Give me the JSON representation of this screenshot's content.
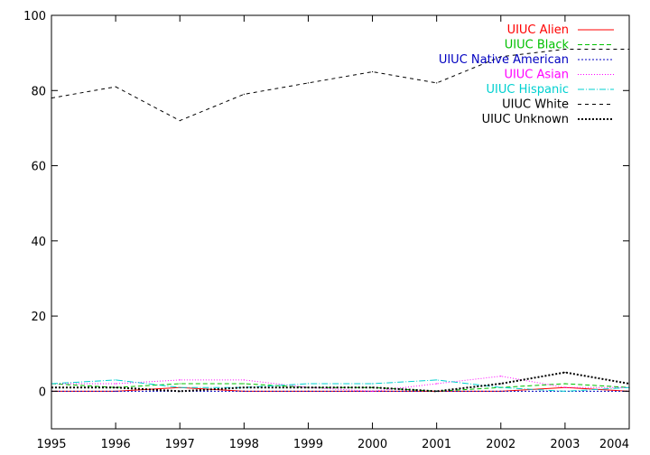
{
  "chart_data": {
    "type": "line",
    "title": "",
    "xlabel": "",
    "ylabel": "",
    "xlim": [
      1995,
      2004
    ],
    "ylim": [
      -10,
      100
    ],
    "x_ticks": [
      1995,
      1996,
      1997,
      1998,
      1999,
      2000,
      2001,
      2002,
      2003,
      2004
    ],
    "y_ticks": [
      0,
      20,
      40,
      60,
      80,
      100
    ],
    "grid": false,
    "legend_position": "top-right",
    "x": [
      1995,
      1996,
      1997,
      1998,
      1999,
      2000,
      2001,
      2002,
      2003,
      2004
    ],
    "series": [
      {
        "name": "UIUC Alien",
        "color": "#ff0000",
        "dash": "solid",
        "values": [
          0,
          0,
          1,
          0,
          0,
          0,
          0,
          0,
          1,
          0
        ]
      },
      {
        "name": "UIUC Black",
        "color": "#00c000",
        "dash": "5,3",
        "values": [
          2,
          1,
          2,
          2,
          1,
          1,
          0,
          1,
          2,
          1
        ]
      },
      {
        "name": "UIUC Native American",
        "color": "#0000c0",
        "dash": "2,2",
        "values": [
          0,
          0,
          0,
          0,
          0,
          0,
          0,
          0,
          0,
          0
        ]
      },
      {
        "name": "UIUC Asian",
        "color": "#ff00ff",
        "dash": "1,2",
        "values": [
          2,
          2,
          3,
          3,
          1,
          0,
          2,
          4,
          1,
          1
        ]
      },
      {
        "name": "UIUC Hispanic",
        "color": "#00d0d0",
        "dash": "7,2,1,2",
        "values": [
          2,
          3,
          1,
          1,
          2,
          2,
          3,
          1,
          0,
          1
        ]
      },
      {
        "name": "UIUC White",
        "color": "#000000",
        "dash": "4,4",
        "values": [
          78,
          81,
          72,
          79,
          82,
          85,
          82,
          89,
          91,
          91
        ]
      },
      {
        "name": "UIUC Unknown",
        "color": "#000000",
        "dash": "2,2",
        "thick": true,
        "values": [
          1,
          1,
          0,
          1,
          1,
          1,
          0,
          2,
          5,
          2
        ]
      }
    ]
  }
}
